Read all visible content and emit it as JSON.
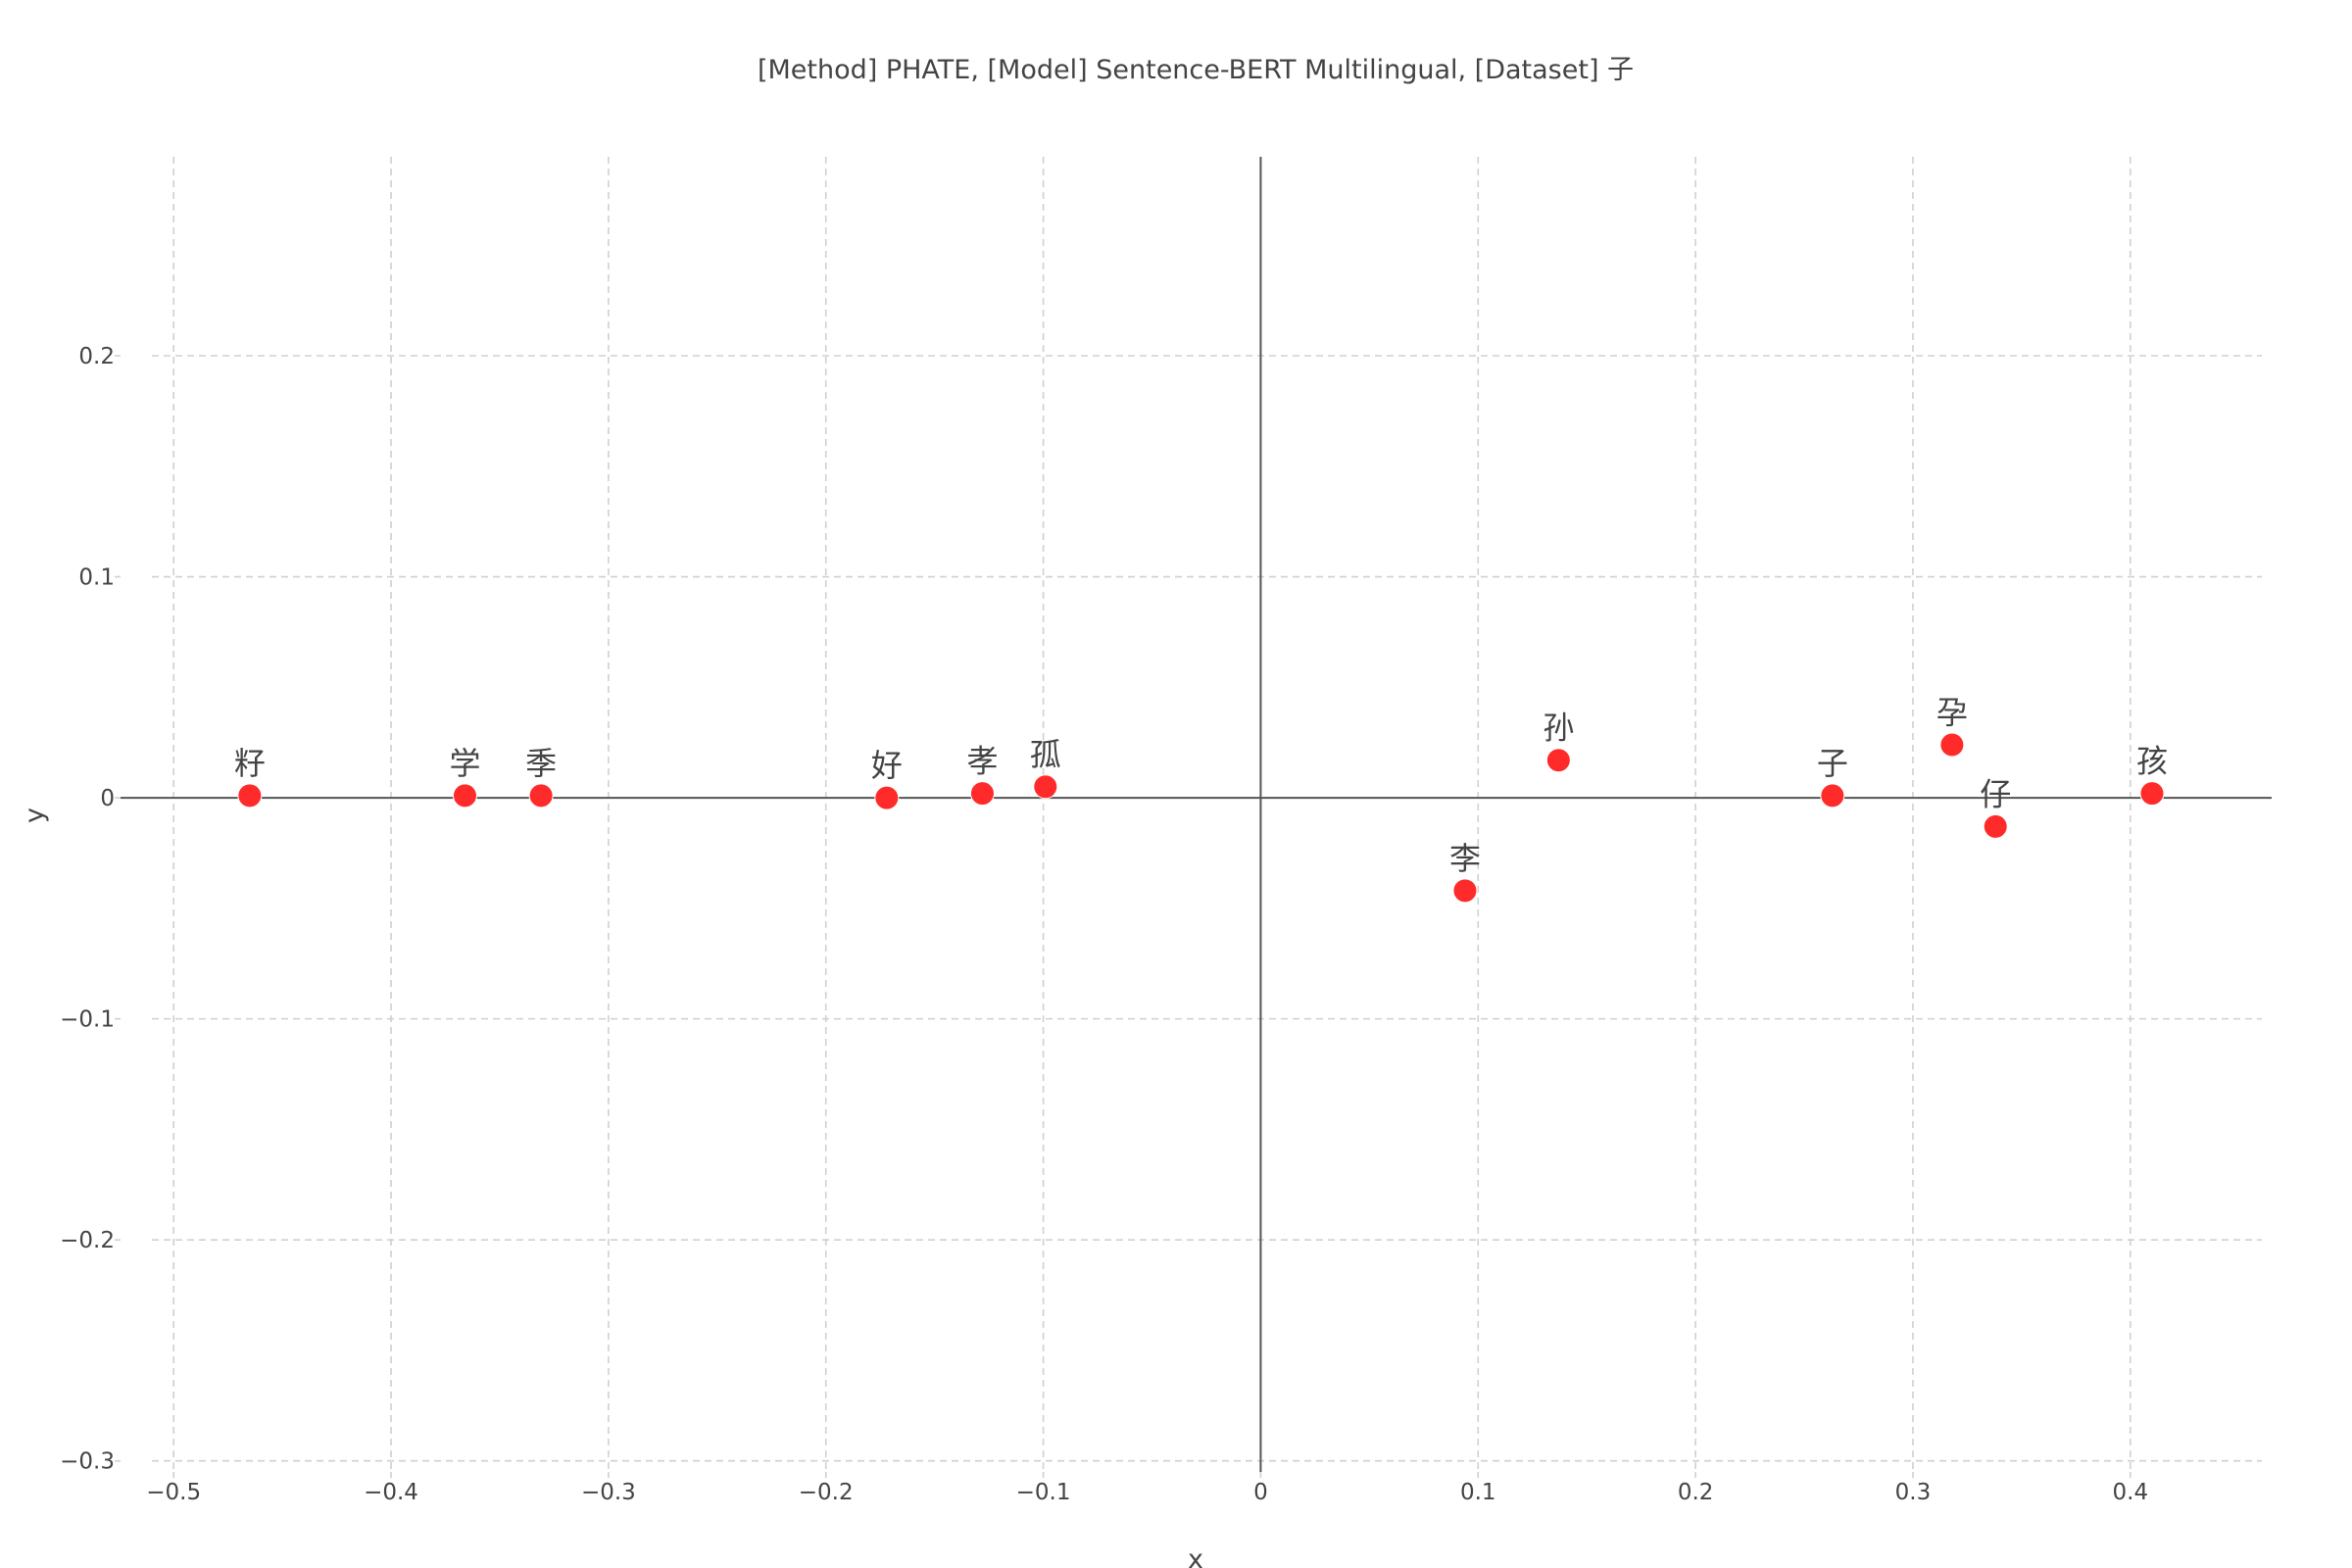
{
  "chart_data": {
    "type": "scatter",
    "title": "[Method] PHATE, [Model] Sentence-BERT Multilingual, [Dataset] 子",
    "xlabel": "x",
    "ylabel": "y",
    "xlim": [
      -0.51,
      0.465
    ],
    "ylim": [
      -0.305,
      0.29
    ],
    "x_ticks": [
      -0.5,
      -0.4,
      -0.3,
      -0.2,
      -0.1,
      0,
      0.1,
      0.2,
      0.3,
      0.4
    ],
    "x_tick_labels": [
      "−0.5",
      "−0.4",
      "−0.3",
      "−0.2",
      "−0.1",
      "0",
      "0.1",
      "0.2",
      "0.3",
      "0.4"
    ],
    "y_ticks": [
      0.2,
      0.1,
      0,
      -0.1,
      -0.2,
      -0.3
    ],
    "y_tick_labels": [
      "0.2",
      "0.1",
      "0",
      "−0.1",
      "−0.2",
      "−0.3"
    ],
    "grid": true,
    "marker_color": "#ff2b2b",
    "points": [
      {
        "label": "籽",
        "x": -0.465,
        "y": 0.001
      },
      {
        "label": "学",
        "x": -0.366,
        "y": 0.001
      },
      {
        "label": "季",
        "x": -0.331,
        "y": 0.001
      },
      {
        "label": "好",
        "x": -0.172,
        "y": 0.0
      },
      {
        "label": "孝",
        "x": -0.128,
        "y": 0.002
      },
      {
        "label": "孤",
        "x": -0.099,
        "y": 0.005
      },
      {
        "label": "李",
        "x": 0.094,
        "y": -0.042
      },
      {
        "label": "孙",
        "x": 0.137,
        "y": 0.017
      },
      {
        "label": "子",
        "x": 0.263,
        "y": 0.001
      },
      {
        "label": "孕",
        "x": 0.318,
        "y": 0.024
      },
      {
        "label": "仔",
        "x": 0.338,
        "y": -0.013
      },
      {
        "label": "孩",
        "x": 0.41,
        "y": 0.002
      }
    ]
  }
}
